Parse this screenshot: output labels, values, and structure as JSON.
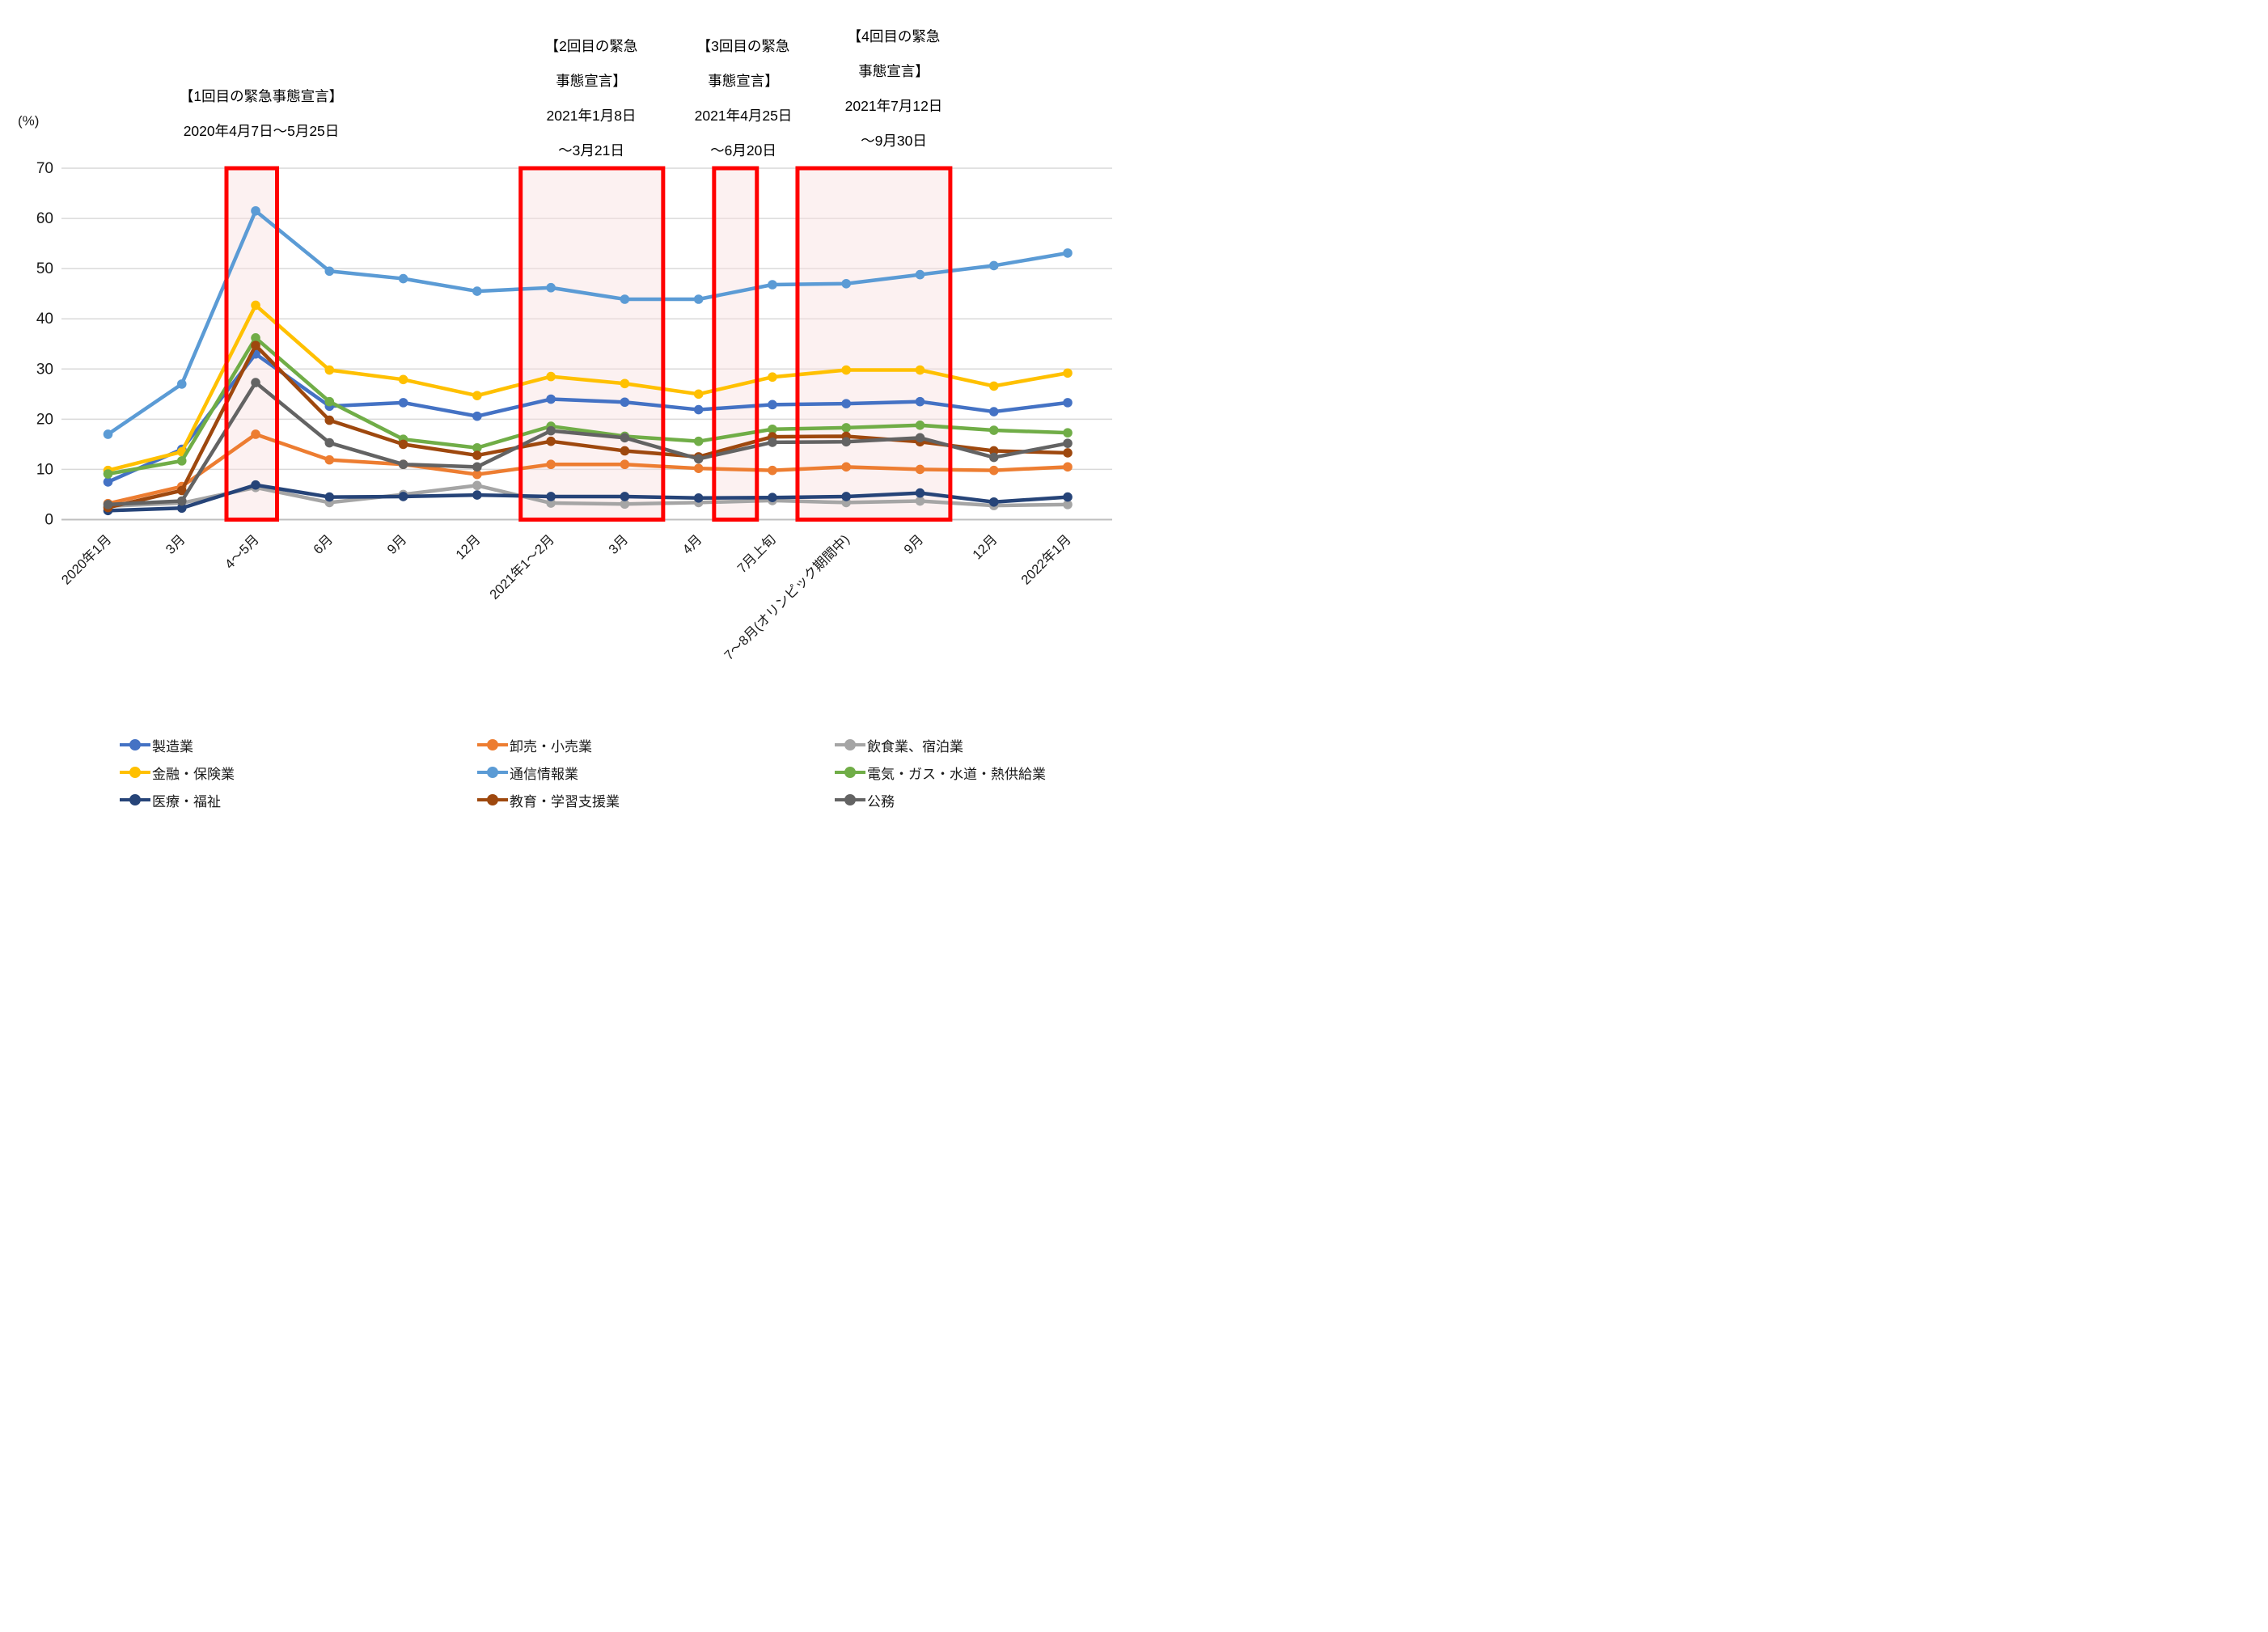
{
  "unit_label": "(%)",
  "annotations": [
    {
      "id": "first-emergency-declaration",
      "lines": [
        "【1回目の緊急事態宣言】",
        "2020年4月7日～5月25日"
      ]
    },
    {
      "id": "second-emergency-declaration",
      "lines": [
        "【2回目の緊急",
        "事態宣言】",
        "2021年1月8日",
        "～3月21日"
      ]
    },
    {
      "id": "third-emergency-declaration",
      "lines": [
        "【3回目の緊急",
        "事態宣言】",
        "2021年4月25日",
        "～6月20日"
      ]
    },
    {
      "id": "fourth-emergency-declaration",
      "lines": [
        "【4回目の緊急",
        "事態宣言】",
        "2021年7月12日",
        "～9月30日"
      ]
    }
  ],
  "chart_data": {
    "type": "line",
    "title": "",
    "xlabel": "",
    "ylabel": "(%)",
    "ylim": [
      0,
      70
    ],
    "y_ticks": [
      0,
      10,
      20,
      30,
      40,
      50,
      60,
      70
    ],
    "grid": true,
    "legend_position": "bottom",
    "categories": [
      "2020年1月",
      "3月",
      "4～5月",
      "6月",
      "9月",
      "12月",
      "2021年1～2月",
      "3月",
      "4月",
      "7月上旬",
      "7～8月(オリンピック期間中)",
      "9月",
      "12月",
      "2022年1月"
    ],
    "series": [
      {
        "name": "製造業",
        "color": "#4472C4",
        "values": [
          7.5,
          14.0,
          33.0,
          22.6,
          23.3,
          20.6,
          24.0,
          23.4,
          21.9,
          22.9,
          23.1,
          23.5,
          21.5,
          23.3
        ]
      },
      {
        "name": "卸売・小売業",
        "color": "#ED7D31",
        "values": [
          3.2,
          6.6,
          17.0,
          11.9,
          11.0,
          9.0,
          11.0,
          11.0,
          10.2,
          9.8,
          10.5,
          10.0,
          9.8,
          10.5
        ]
      },
      {
        "name": "飲食業、宿泊業",
        "color": "#A5A5A5",
        "values": [
          2.7,
          3.3,
          6.4,
          3.4,
          5.0,
          6.8,
          3.3,
          3.1,
          3.4,
          3.8,
          3.4,
          3.7,
          2.8,
          3.0
        ]
      },
      {
        "name": "金融・保険業",
        "color": "#FFC000",
        "values": [
          9.8,
          13.5,
          42.7,
          29.8,
          27.9,
          24.7,
          28.5,
          27.1,
          25.0,
          28.4,
          29.8,
          29.8,
          26.6,
          29.2
        ]
      },
      {
        "name": "通信情報業",
        "color": "#5B9BD5",
        "values": [
          17.0,
          27.0,
          61.5,
          49.5,
          48.0,
          45.5,
          46.2,
          43.9,
          43.9,
          46.8,
          47.0,
          48.8,
          50.6,
          53.1
        ]
      },
      {
        "name": "電気・ガス・水道・熱供給業",
        "color": "#70AD47",
        "values": [
          9.1,
          11.7,
          36.2,
          23.5,
          16.0,
          14.3,
          18.6,
          16.6,
          15.6,
          18.0,
          18.3,
          18.8,
          17.8,
          17.3
        ]
      },
      {
        "name": "医療・福祉",
        "color": "#264478",
        "values": [
          1.8,
          2.3,
          6.9,
          4.5,
          4.6,
          4.9,
          4.6,
          4.6,
          4.3,
          4.4,
          4.6,
          5.3,
          3.5,
          4.5
        ]
      },
      {
        "name": "教育・学習支援業",
        "color": "#9E480E",
        "values": [
          2.4,
          5.8,
          34.7,
          19.8,
          15.0,
          12.8,
          15.6,
          13.7,
          12.5,
          16.5,
          16.6,
          15.5,
          13.7,
          13.3
        ]
      },
      {
        "name": "公務",
        "color": "#636363",
        "values": [
          3.0,
          3.7,
          27.3,
          15.3,
          11.0,
          10.5,
          17.7,
          16.3,
          12.1,
          15.4,
          15.5,
          16.3,
          12.4,
          15.2
        ]
      }
    ],
    "highlight_boxes": [
      {
        "label": "1回目の緊急事態宣言期間",
        "span": [
          1.605,
          2.29
        ],
        "border_color": "#FF0000",
        "fill_color": "rgba(248,225,225,0.45)"
      },
      {
        "label": "2回目の緊急事態宣言期間",
        "span": [
          5.59,
          7.52
        ],
        "border_color": "#FF0000",
        "fill_color": "rgba(248,225,225,0.45)"
      },
      {
        "label": "3回目の緊急事態宣言期間",
        "span": [
          8.21,
          8.79
        ],
        "border_color": "#FF0000",
        "fill_color": "rgba(248,225,225,0.45)"
      },
      {
        "label": "4回目の緊急事態宣言期間",
        "span": [
          9.34,
          11.41
        ],
        "border_color": "#FF0000",
        "fill_color": "rgba(248,225,225,0.45)"
      }
    ]
  },
  "legend": {
    "columns": [
      [
        "製造業",
        "金融・保険業",
        "医療・福祉"
      ],
      [
        "卸売・小売業",
        "通信情報業",
        "教育・学習支援業"
      ],
      [
        "飲食業、宿泊業",
        "電気・ガス・水道・熱供給業",
        "公務"
      ]
    ]
  }
}
